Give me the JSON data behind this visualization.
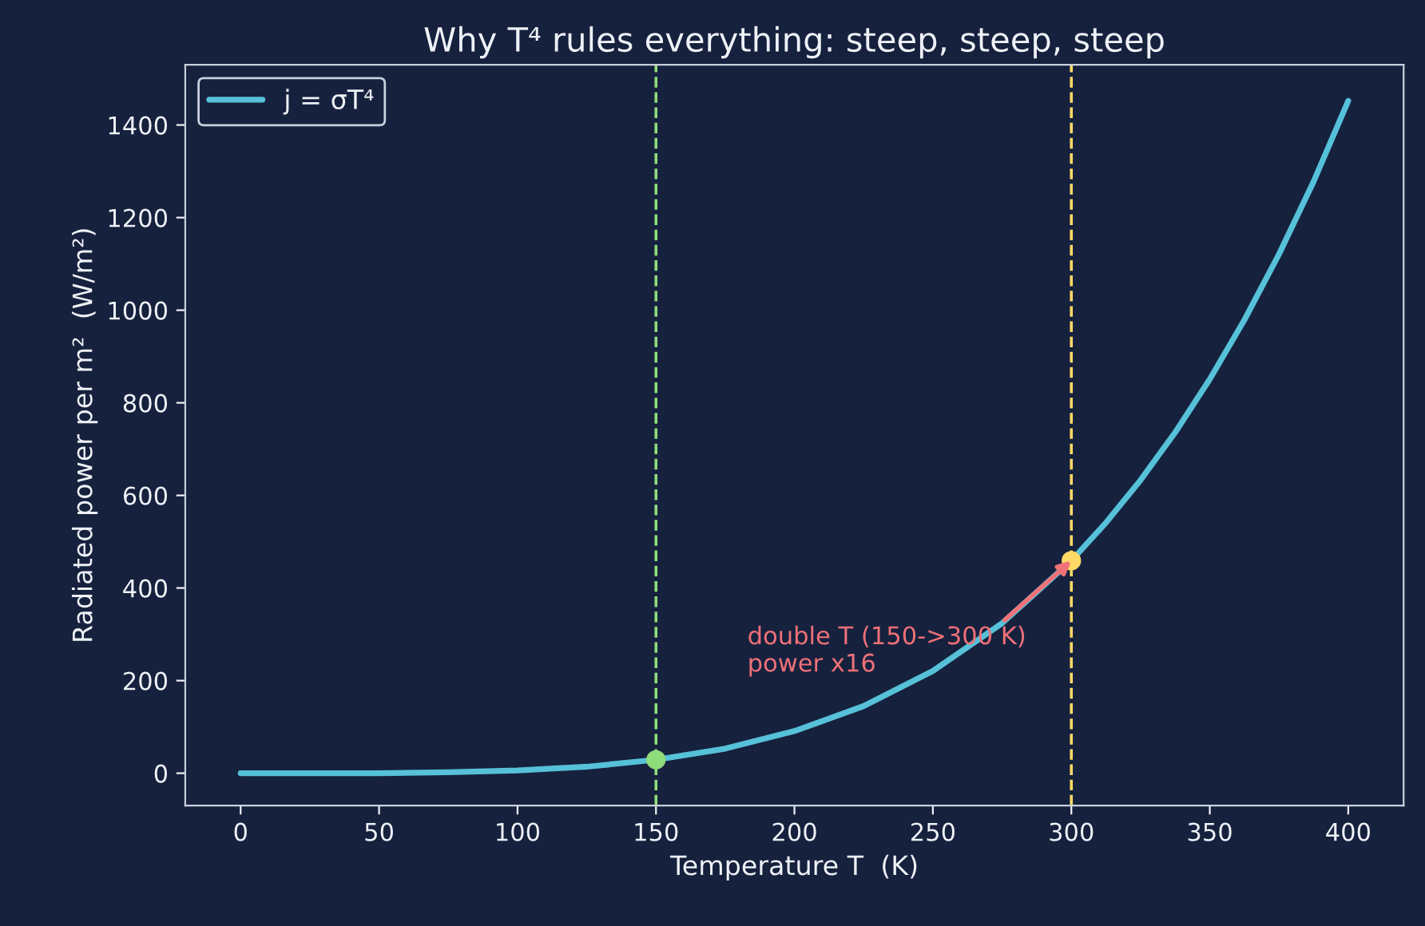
{
  "chart_data": {
    "type": "line",
    "title": "Why T⁴ rules everything: steep, steep, steep",
    "xlabel": "Temperature T  (K)",
    "ylabel": "Radiated power per m²  (W/m²)",
    "series": [
      {
        "name": "j = σT⁴",
        "color": "#56c1d8",
        "x": [
          0,
          25,
          50,
          75,
          100,
          125,
          150,
          175,
          200,
          225,
          250,
          275,
          300,
          312.5,
          325,
          337.5,
          350,
          362.5,
          375,
          387.5,
          400
        ],
        "values": [
          0,
          0,
          0,
          2,
          6,
          14,
          29,
          53,
          91,
          145,
          221,
          324,
          459,
          541,
          633,
          736,
          851,
          979,
          1121,
          1278,
          1452
        ]
      },
      {
        "type": "scatter",
        "color": "#8fdc7a",
        "x": [
          150
        ],
        "values": [
          29
        ]
      },
      {
        "type": "scatter",
        "color": "#ffd966",
        "x": [
          300
        ],
        "values": [
          459
        ]
      }
    ],
    "ref_lines": [
      {
        "axis": "x",
        "value": 150,
        "color": "#8fdc7a",
        "line_style": "dashed"
      },
      {
        "axis": "x",
        "value": 300,
        "color": "#ffd966",
        "line_style": "dashed"
      }
    ],
    "annotations": [
      {
        "text": "double T (150->300 K)\npower x16",
        "x": 300,
        "y": 459
      }
    ],
    "xlim": [
      -20,
      420
    ],
    "ylim": [
      -70,
      1530
    ],
    "xticks": [
      0,
      50,
      100,
      150,
      200,
      250,
      300,
      350,
      400
    ],
    "yticks": [
      0,
      200,
      400,
      600,
      800,
      1000,
      1200,
      1400
    ],
    "grid": false,
    "legend": "top left"
  }
}
